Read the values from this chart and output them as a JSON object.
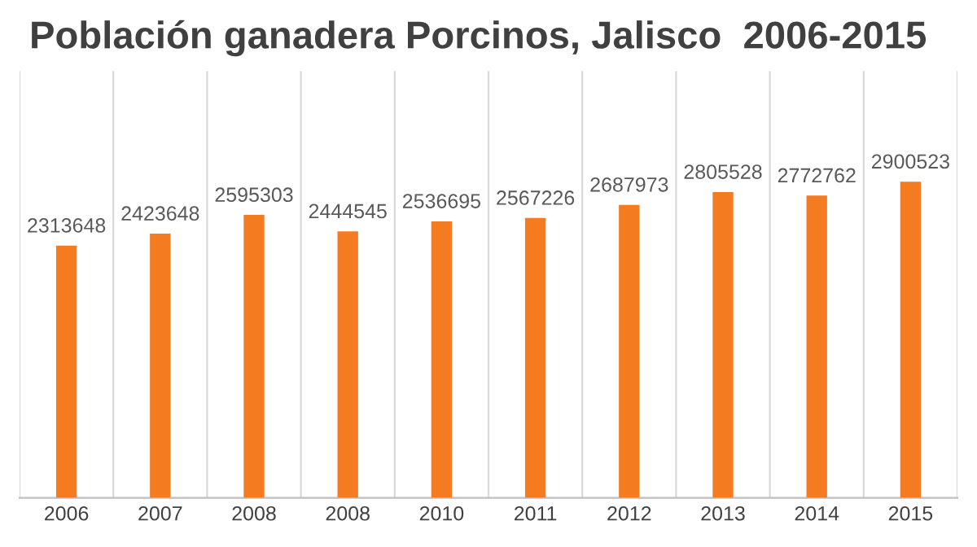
{
  "chart_data": {
    "type": "bar",
    "title": "Población ganadera Porcinos, Jalisco  2006-2015",
    "categories": [
      "2006",
      "2007",
      "2008",
      "2008",
      "2010",
      "2011",
      "2012",
      "2013",
      "2014",
      "2015"
    ],
    "values": [
      2313648,
      2423648,
      2595303,
      2444545,
      2536695,
      2567226,
      2687973,
      2805528,
      2772762,
      2900523
    ],
    "color": "#f47b20",
    "data_labels": true,
    "grid": "x",
    "legend": false
  }
}
